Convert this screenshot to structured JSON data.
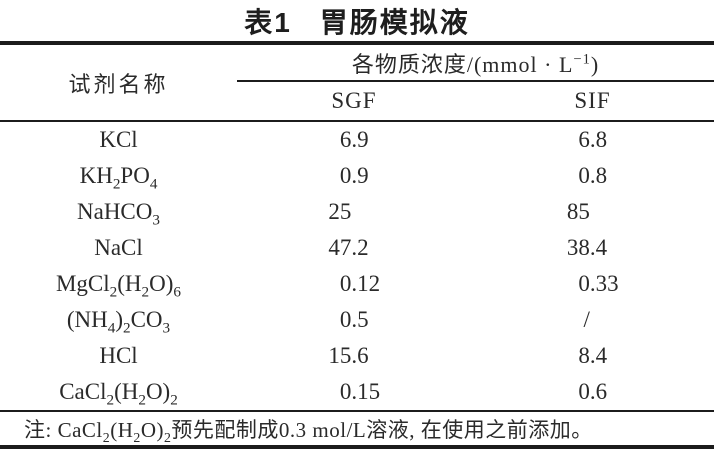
{
  "table": {
    "title": {
      "label": "表1",
      "text": "胃肠模拟液"
    },
    "header": {
      "reagent_col": "试剂名称",
      "concentration_span": "各物质浓度/(mmol · L^{−1})",
      "sub_columns": [
        "SGF",
        "SIF"
      ]
    },
    "rows": [
      {
        "name": "KCl",
        "sgf": "6.9",
        "sif": "6.8"
      },
      {
        "name": "KH_2PO_4",
        "sgf": "0.9",
        "sif": "0.8"
      },
      {
        "name": "NaHCO_3",
        "sgf": "25",
        "sif": "85"
      },
      {
        "name": "NaCl",
        "sgf": "47.2",
        "sif": "38.4"
      },
      {
        "name": "MgCl_2(H_2O)_6",
        "sgf": "0.12",
        "sif": "0.33"
      },
      {
        "name": "(NH_4)_2CO_3",
        "sgf": "0.5",
        "sif": "/"
      },
      {
        "name": "HCl",
        "sgf": "15.6",
        "sif": "8.4"
      },
      {
        "name": "CaCl_2(H_2O)_2",
        "sgf": "0.15",
        "sif": "0.6"
      }
    ],
    "note": "注: CaCl_2(H_2O)_2预先配制成0.3 mol/L溶液, 在使用之前添加。"
  },
  "colors": {
    "text": "#2a2a2a",
    "rule": "#1c1c1c",
    "background": "#ffffff"
  }
}
